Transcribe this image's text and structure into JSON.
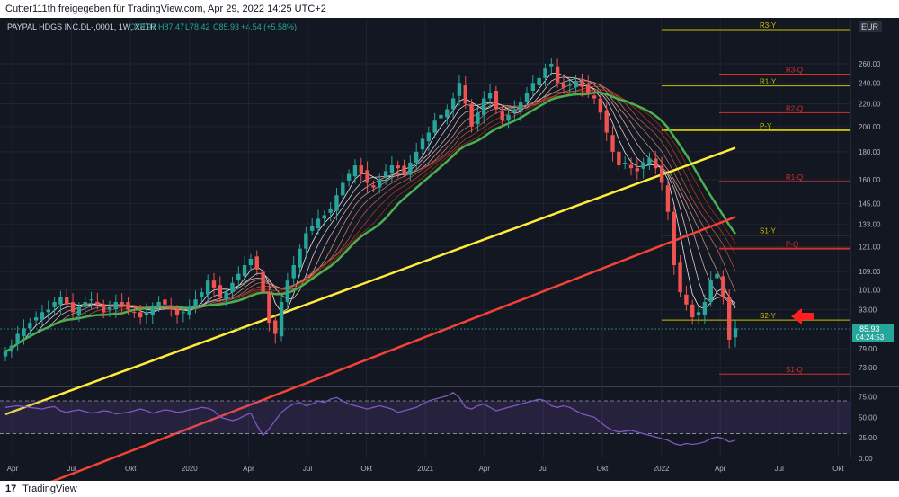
{
  "header": {
    "attribution": "Cutter111th freigegeben für TradingView.com, Apr 29, 2022 14:25 UTC+2"
  },
  "footer": {
    "logo": "17",
    "brand": "TradingView"
  },
  "legend": {
    "symbol": "PAYPAL HDGS INC.DL-,0001, 1W, XETR",
    "open": "O79.97",
    "high": "H87.47",
    "low": "L78.42",
    "close": "C85.93",
    "change": "+4.54 (+5.58%)"
  },
  "currency": "EUR",
  "price_tag": {
    "price": "85.93",
    "countdown": "04:24:53"
  },
  "colors": {
    "background": "#131722",
    "up": "#26a69a",
    "down": "#ef5350",
    "ma_green": "#4caf50",
    "ma_yellow": "#ffeb3b",
    "ma_red": "#f44336",
    "rsi": "#7e57c2",
    "level_yellow": "#c9c000",
    "level_red": "#d32f2f",
    "arrow": "#ff1f1f"
  },
  "chart_data": [
    {
      "type": "candlestick",
      "x_ticks": [
        "Apr",
        "Jul",
        "Okt",
        "2020",
        "Apr",
        "Jul",
        "Okt",
        "2021",
        "Apr",
        "Jul",
        "Okt",
        "2022",
        "Apr",
        "Jul",
        "Okt"
      ],
      "y_ticks": [
        "260.00",
        "240.00",
        "220.00",
        "200.00",
        "180.00",
        "160.00",
        "145.00",
        "133.00",
        "121.00",
        "109.00",
        "101.00",
        "93.00",
        "79.00",
        "73.00"
      ],
      "ylim": [
        70,
        290
      ],
      "log_scale": true,
      "closes": [
        78,
        80,
        84,
        86,
        88,
        90,
        92,
        93,
        96,
        98,
        95,
        92,
        94,
        96,
        97,
        95,
        92,
        94,
        96,
        95,
        93,
        92,
        90,
        92,
        94,
        96,
        95,
        93,
        91,
        92,
        94,
        97,
        100,
        105,
        102,
        98,
        100,
        104,
        108,
        112,
        115,
        110,
        100,
        88,
        84,
        96,
        105,
        112,
        120,
        128,
        132,
        136,
        138,
        142,
        150,
        158,
        164,
        170,
        165,
        158,
        155,
        160,
        166,
        170,
        168,
        165,
        172,
        180,
        190,
        195,
        205,
        210,
        215,
        225,
        240,
        220,
        200,
        212,
        225,
        230,
        215,
        205,
        210,
        215,
        222,
        230,
        240,
        245,
        255,
        260,
        240,
        235,
        238,
        242,
        236,
        230,
        225,
        212,
        195,
        180,
        170,
        172,
        168,
        166,
        172,
        175,
        168,
        158,
        140,
        112,
        100,
        95,
        90,
        92,
        96,
        105,
        108,
        98,
        82,
        86
      ],
      "levels": [
        {
          "label": "R3-Y",
          "value": 300,
          "color": "yellow"
        },
        {
          "label": "R3-Q",
          "value": 249,
          "color": "red"
        },
        {
          "label": "R1-Y",
          "value": 237,
          "color": "yellow"
        },
        {
          "label": "R2-Q",
          "value": 212,
          "color": "red"
        },
        {
          "label": "P-Y",
          "value": 197,
          "color": "yellow"
        },
        {
          "label": "R1-Q",
          "value": 159,
          "color": "red"
        },
        {
          "label": "S1-Y",
          "value": 127,
          "color": "yellow"
        },
        {
          "label": "P-Q",
          "value": 120,
          "color": "red"
        },
        {
          "label": "S2-Y",
          "value": 89,
          "color": "yellow"
        },
        {
          "label": "S1-Q",
          "value": 71,
          "color": "red"
        }
      ]
    },
    {
      "type": "line",
      "name": "RSI",
      "y_ticks": [
        "75.00",
        "50.00",
        "25.00",
        "0.00"
      ],
      "ylim": [
        0,
        82
      ],
      "bands": [
        70,
        30
      ],
      "values": [
        62,
        63,
        64,
        63,
        62,
        61,
        60,
        62,
        63,
        58,
        56,
        58,
        59,
        57,
        55,
        56,
        58,
        57,
        54,
        55,
        56,
        58,
        60,
        58,
        55,
        57,
        59,
        58,
        56,
        57,
        59,
        60,
        62,
        61,
        58,
        50,
        48,
        46,
        48,
        52,
        55,
        40,
        28,
        36,
        46,
        56,
        62,
        66,
        68,
        64,
        66,
        70,
        68,
        72,
        74,
        70,
        66,
        64,
        62,
        60,
        62,
        64,
        62,
        60,
        56,
        58,
        60,
        62,
        66,
        70,
        72,
        74,
        76,
        80,
        74,
        62,
        60,
        64,
        66,
        62,
        58,
        60,
        62,
        64,
        66,
        68,
        70,
        72,
        70,
        64,
        62,
        64,
        62,
        58,
        54,
        52,
        50,
        44,
        38,
        34,
        32,
        33,
        34,
        32,
        30,
        28,
        26,
        24,
        22,
        18,
        16,
        18,
        17,
        18,
        20,
        24,
        26,
        24,
        20,
        22
      ]
    }
  ]
}
